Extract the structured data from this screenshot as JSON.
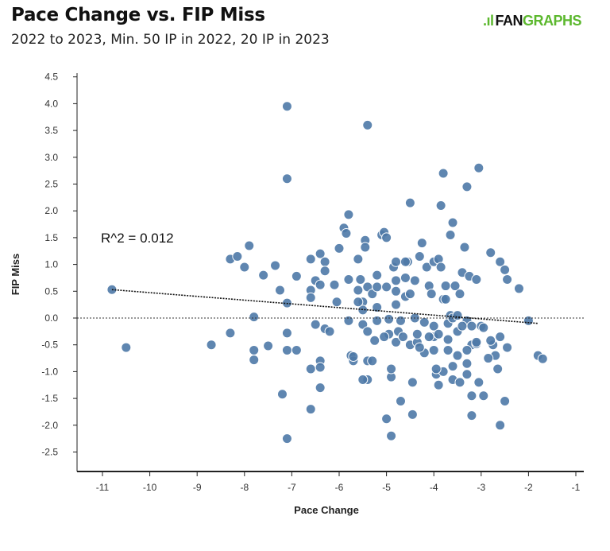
{
  "header": {
    "title": "Pace Change vs. FIP Miss",
    "subtitle": "2022 to 2023, Min. 50 IP in 2022, 20 IP in 2023",
    "logo": "FANGRAPHS"
  },
  "chart_data": {
    "type": "scatter",
    "title": "Pace Change vs. FIP Miss",
    "subtitle": "2022 to 2023, Min. 50 IP in 2022, 20 IP in 2023",
    "xlabel": "Pace Change",
    "ylabel": "FIP Miss",
    "xlim": [
      -11.6,
      -0.9
    ],
    "ylim": [
      -2.85,
      4.6
    ],
    "xticks": [
      -11,
      -10,
      -9,
      -8,
      -7,
      -6,
      -5,
      -4,
      -3,
      -2,
      -1
    ],
    "yticks": [
      -2.5,
      -2.0,
      -1.5,
      -1.0,
      -0.5,
      0.0,
      0.5,
      1.0,
      1.5,
      2.0,
      2.5,
      3.0,
      3.5,
      4.0,
      4.5
    ],
    "annotation": "R^2 = 0.012",
    "trendline": {
      "x": [
        -10.8,
        -1.8
      ],
      "y": [
        0.53,
        -0.1
      ]
    },
    "zero_line": 0,
    "grid": false,
    "point_color": "#4e79a7",
    "points": [
      [
        -10.8,
        0.53
      ],
      [
        -10.5,
        -0.55
      ],
      [
        -8.7,
        -0.5
      ],
      [
        -8.3,
        1.1
      ],
      [
        -8.3,
        -0.28
      ],
      [
        -8.15,
        1.15
      ],
      [
        -8.0,
        0.95
      ],
      [
        -7.9,
        1.35
      ],
      [
        -7.8,
        0.02
      ],
      [
        -7.8,
        -0.6
      ],
      [
        -7.8,
        -0.78
      ],
      [
        -7.6,
        0.8
      ],
      [
        -7.5,
        -0.52
      ],
      [
        -7.35,
        0.98
      ],
      [
        -7.25,
        0.52
      ],
      [
        -7.2,
        -1.42
      ],
      [
        -7.1,
        3.95
      ],
      [
        -7.1,
        2.6
      ],
      [
        -7.1,
        0.28
      ],
      [
        -7.1,
        -0.28
      ],
      [
        -7.1,
        -0.6
      ],
      [
        -7.1,
        -2.25
      ],
      [
        -6.9,
        0.78
      ],
      [
        -6.9,
        -0.6
      ],
      [
        -6.6,
        1.1
      ],
      [
        -6.6,
        0.52
      ],
      [
        -6.6,
        0.38
      ],
      [
        -6.6,
        -0.95
      ],
      [
        -6.6,
        -1.7
      ],
      [
        -6.5,
        0.7
      ],
      [
        -6.5,
        -0.12
      ],
      [
        -6.4,
        1.2
      ],
      [
        -6.4,
        0.62
      ],
      [
        -6.4,
        -0.8
      ],
      [
        -6.4,
        -0.92
      ],
      [
        -6.4,
        -1.3
      ],
      [
        -6.3,
        1.05
      ],
      [
        -6.3,
        0.88
      ],
      [
        -6.3,
        -0.2
      ],
      [
        -6.2,
        -0.25
      ],
      [
        -6.1,
        0.62
      ],
      [
        -6.05,
        0.3
      ],
      [
        -6.0,
        1.3
      ],
      [
        -5.9,
        1.68
      ],
      [
        -5.85,
        1.58
      ],
      [
        -5.8,
        1.93
      ],
      [
        -5.8,
        0.72
      ],
      [
        -5.8,
        -0.05
      ],
      [
        -5.75,
        -0.7
      ],
      [
        -5.7,
        -0.8
      ],
      [
        -5.7,
        -0.72
      ],
      [
        -5.6,
        1.1
      ],
      [
        -5.6,
        0.52
      ],
      [
        -5.55,
        0.72
      ],
      [
        -5.5,
        0.3
      ],
      [
        -5.5,
        0.15
      ],
      [
        -5.5,
        -0.12
      ],
      [
        -5.45,
        1.45
      ],
      [
        -5.45,
        1.32
      ],
      [
        -5.4,
        0.58
      ],
      [
        -5.4,
        3.6
      ],
      [
        -5.4,
        -0.25
      ],
      [
        -5.4,
        -0.8
      ],
      [
        -5.4,
        -1.15
      ],
      [
        -5.3,
        0.45
      ],
      [
        -5.3,
        -0.8
      ],
      [
        -5.25,
        -0.42
      ],
      [
        -5.2,
        0.58
      ],
      [
        -5.2,
        0.2
      ],
      [
        -5.1,
        1.55
      ],
      [
        -5.05,
        1.6
      ],
      [
        -5.0,
        1.5
      ],
      [
        -5.0,
        0.58
      ],
      [
        -4.95,
        -0.02
      ],
      [
        -4.95,
        -0.3
      ],
      [
        -4.9,
        -1.1
      ],
      [
        -4.9,
        -2.2
      ],
      [
        -4.9,
        -0.95
      ],
      [
        -4.85,
        0.95
      ],
      [
        -4.8,
        1.05
      ],
      [
        -4.8,
        0.7
      ],
      [
        -4.8,
        0.25
      ],
      [
        -4.8,
        -0.45
      ],
      [
        -4.75,
        -0.25
      ],
      [
        -4.7,
        -1.55
      ],
      [
        -4.7,
        -0.05
      ],
      [
        -4.6,
        0.4
      ],
      [
        -4.6,
        0.75
      ],
      [
        -4.55,
        1.05
      ],
      [
        -4.5,
        2.15
      ],
      [
        -4.5,
        0.45
      ],
      [
        -4.5,
        -0.5
      ],
      [
        -4.45,
        -1.2
      ],
      [
        -4.45,
        -1.8
      ],
      [
        -4.4,
        0.7
      ],
      [
        -4.35,
        -0.45
      ],
      [
        -4.35,
        -0.3
      ],
      [
        -4.3,
        1.15
      ],
      [
        -4.25,
        1.4
      ],
      [
        -4.2,
        -0.65
      ],
      [
        -4.2,
        -0.08
      ],
      [
        -4.15,
        0.95
      ],
      [
        -4.1,
        0.6
      ],
      [
        -4.05,
        0.45
      ],
      [
        -4.0,
        1.05
      ],
      [
        -4.0,
        -0.35
      ],
      [
        -3.95,
        -1.05
      ],
      [
        -3.9,
        1.1
      ],
      [
        -3.9,
        -1.25
      ],
      [
        -3.85,
        0.95
      ],
      [
        -3.85,
        2.1
      ],
      [
        -3.8,
        2.7
      ],
      [
        -3.8,
        0.35
      ],
      [
        -3.75,
        0.6
      ],
      [
        -3.7,
        -0.1
      ],
      [
        -3.7,
        -0.6
      ],
      [
        -3.65,
        1.55
      ],
      [
        -3.65,
        0.05
      ],
      [
        -3.6,
        1.78
      ],
      [
        -3.6,
        -0.9
      ],
      [
        -3.55,
        0.6
      ],
      [
        -3.5,
        -0.7
      ],
      [
        -3.45,
        0.45
      ],
      [
        -3.4,
        0.85
      ],
      [
        -3.35,
        1.32
      ],
      [
        -3.3,
        2.45
      ],
      [
        -3.3,
        -0.85
      ],
      [
        -3.25,
        0.78
      ],
      [
        -3.2,
        -0.5
      ],
      [
        -3.2,
        -1.45
      ],
      [
        -3.2,
        -1.82
      ],
      [
        -3.1,
        0.72
      ],
      [
        -3.1,
        -0.48
      ],
      [
        -3.05,
        -1.2
      ],
      [
        -3.0,
        -0.15
      ],
      [
        -2.95,
        -0.18
      ],
      [
        -2.8,
        1.22
      ],
      [
        -2.7,
        -0.7
      ],
      [
        -2.6,
        1.05
      ],
      [
        -2.5,
        0.9
      ],
      [
        -2.45,
        0.72
      ],
      [
        -2.6,
        -0.35
      ],
      [
        -2.65,
        -0.95
      ],
      [
        -2.6,
        -2.0
      ],
      [
        -2.5,
        -1.55
      ],
      [
        -2.45,
        -0.55
      ],
      [
        -2.2,
        0.55
      ],
      [
        -2.0,
        -0.05
      ],
      [
        -1.8,
        -0.7
      ],
      [
        -1.7,
        -0.76
      ],
      [
        -2.75,
        -0.5
      ],
      [
        -2.85,
        -0.75
      ],
      [
        -3.6,
        0.0
      ],
      [
        -3.5,
        0.05
      ],
      [
        -4.4,
        0.0
      ],
      [
        -5.2,
        -0.05
      ],
      [
        -5.05,
        -0.35
      ],
      [
        -4.0,
        -0.6
      ],
      [
        -4.0,
        -0.15
      ],
      [
        -4.3,
        -0.55
      ],
      [
        -5.5,
        -1.15
      ],
      [
        -5.0,
        -1.88
      ],
      [
        -3.8,
        -1.0
      ],
      [
        -3.6,
        -1.15
      ],
      [
        -3.5,
        -0.25
      ],
      [
        -3.3,
        -0.05
      ],
      [
        -3.1,
        -0.45
      ],
      [
        -3.2,
        -0.15
      ],
      [
        -4.65,
        -0.35
      ],
      [
        -4.1,
        -0.35
      ],
      [
        -3.95,
        -0.95
      ],
      [
        -3.45,
        -1.2
      ],
      [
        -2.8,
        -0.42
      ],
      [
        -3.7,
        -0.4
      ],
      [
        -3.4,
        -0.15
      ],
      [
        -4.8,
        0.5
      ],
      [
        -4.6,
        1.05
      ],
      [
        -5.2,
        0.8
      ],
      [
        -5.6,
        0.3
      ],
      [
        -3.75,
        0.35
      ],
      [
        -3.9,
        -0.3
      ],
      [
        -2.95,
        -1.45
      ],
      [
        -3.3,
        -1.05
      ],
      [
        -3.3,
        -0.6
      ],
      [
        -3.05,
        2.8
      ]
    ]
  }
}
